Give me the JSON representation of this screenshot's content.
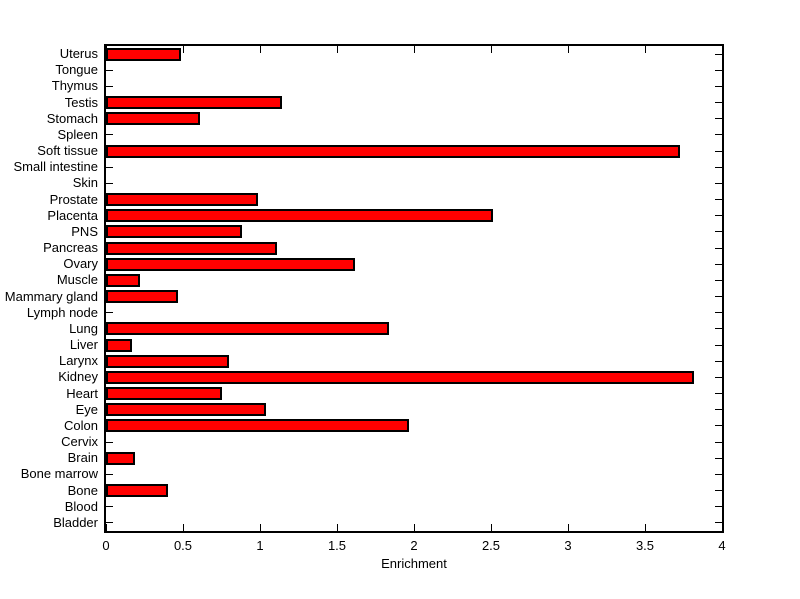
{
  "figure": {
    "background": "#ffffff",
    "axis_color": "#000000",
    "title": ""
  },
  "chart_data": {
    "type": "bar",
    "orientation": "horizontal",
    "title": "",
    "xlabel": "Enrichment",
    "ylabel": "",
    "xlim": [
      0,
      4
    ],
    "xticks": [
      0,
      0.5,
      1,
      1.5,
      2,
      2.5,
      3,
      3.5,
      4
    ],
    "xtick_labels": [
      "0",
      "0.5",
      "1",
      "1.5",
      "2",
      "2.5",
      "3",
      "3.5",
      "4"
    ],
    "grid": "off",
    "legend": "none",
    "bar_color": "#ff0000",
    "bar_edge_color": "#000000",
    "categories": [
      "Uterus",
      "Tongue",
      "Thymus",
      "Testis",
      "Stomach",
      "Spleen",
      "Soft tissue",
      "Small intestine",
      "Skin",
      "Prostate",
      "Placenta",
      "PNS",
      "Pancreas",
      "Ovary",
      "Muscle",
      "Mammary gland",
      "Lymph node",
      "Lung",
      "Liver",
      "Larynx",
      "Kidney",
      "Heart",
      "Eye",
      "Colon",
      "Cervix",
      "Brain",
      "Bone marrow",
      "Bone",
      "Blood",
      "Bladder"
    ],
    "values": [
      0.49,
      0,
      0,
      1.14,
      0.61,
      0,
      3.73,
      0,
      0,
      0.99,
      2.51,
      0.88,
      1.11,
      1.62,
      0.22,
      0.47,
      0,
      1.84,
      0.17,
      0.8,
      3.82,
      0.75,
      1.04,
      1.97,
      0,
      0.19,
      0,
      0.4,
      0,
      0
    ]
  }
}
